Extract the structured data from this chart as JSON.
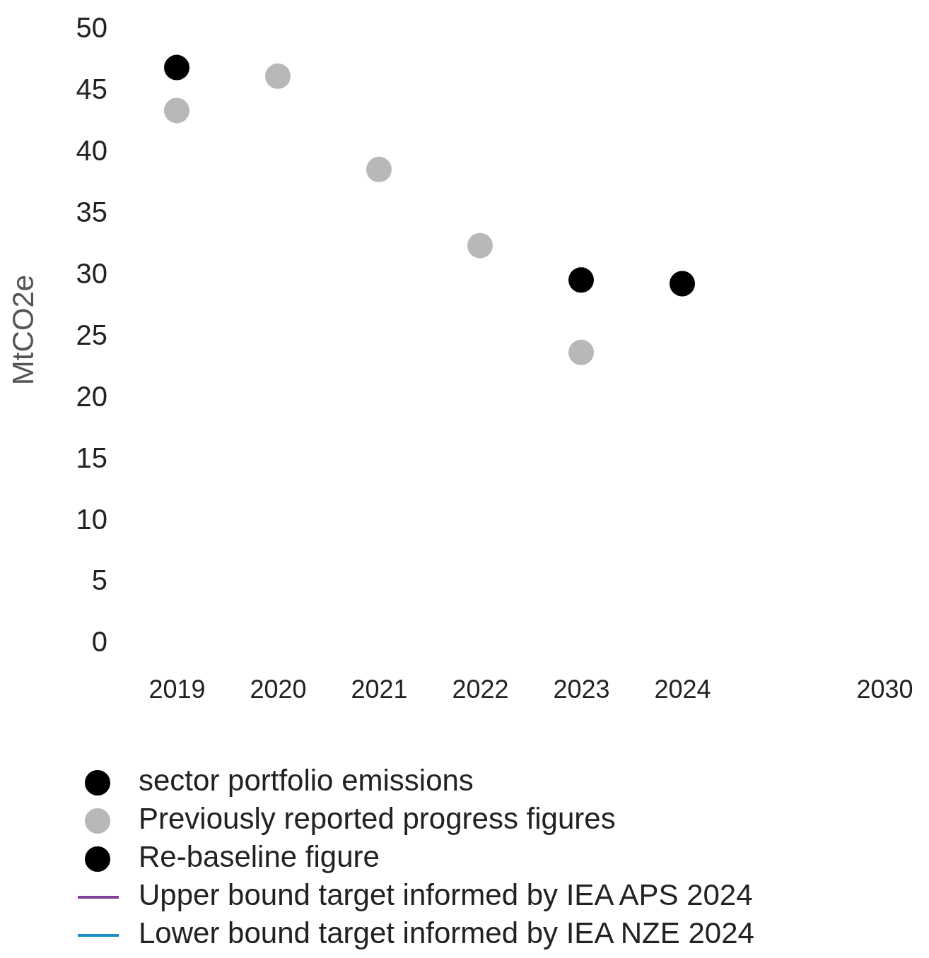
{
  "chart_data": {
    "type": "scatter",
    "ylabel": "MtCO2e",
    "categories": [
      "2019",
      "2020",
      "2021",
      "2022",
      "2023",
      "2024",
      null,
      "2030"
    ],
    "ylim": [
      0,
      50
    ],
    "yticks": [
      0,
      5,
      10,
      15,
      20,
      25,
      30,
      35,
      40,
      45,
      50
    ],
    "grid": false,
    "legend": "bottom",
    "marker": "circle",
    "series": [
      {
        "name": "sector portfolio emissions",
        "color": "#000000",
        "values": [
          null,
          null,
          null,
          null,
          29.5,
          29.2,
          null,
          null
        ]
      },
      {
        "name": "Previously reported progress figures",
        "color": "#b8b8b8",
        "values": [
          43.3,
          46.1,
          38.5,
          32.3,
          23.6,
          null,
          null,
          null
        ]
      },
      {
        "name": "Re-baseline figure",
        "color": "#000000",
        "values": [
          46.8,
          null,
          null,
          null,
          null,
          null,
          null,
          null
        ]
      },
      {
        "name": "Upper bound target informed by IEA APS 2024",
        "type": "line",
        "color": "#7d3f98",
        "values": [
          null,
          null,
          null,
          null,
          null,
          null,
          null,
          null
        ]
      },
      {
        "name": "Lower bound target informed by IEA NZE 2024",
        "type": "line",
        "color": "#1a8fc9",
        "values": [
          null,
          null,
          null,
          null,
          null,
          null,
          null,
          null
        ]
      }
    ]
  }
}
